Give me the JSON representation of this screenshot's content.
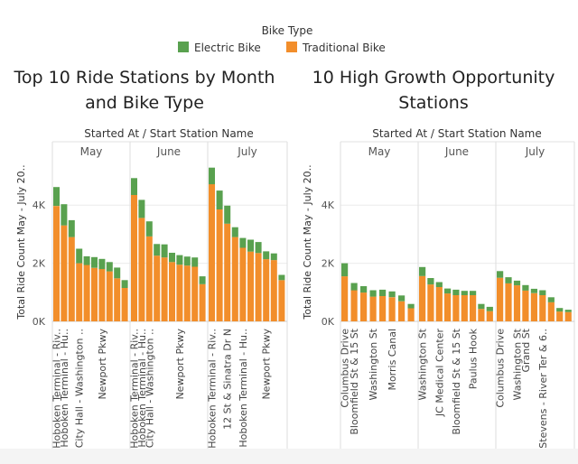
{
  "legend": {
    "title": "Bike Type",
    "items": [
      {
        "label": "Electric Bike",
        "color": "#59a14f"
      },
      {
        "label": "Traditional Bike",
        "color": "#f28e2b"
      }
    ]
  },
  "chart_data": [
    {
      "type": "bar",
      "stacked": true,
      "title": "Top 10 Ride Stations by Month and Bike Type",
      "header": "Started At / Start Station Name",
      "ylabel": "Total Ride Count May - July 20..",
      "yticks": [
        "0K",
        "2K",
        "4K"
      ],
      "ylim": [
        0,
        5600
      ],
      "panels": [
        {
          "name": "May",
          "categories": [
            "Hoboken Terminal - Riv..",
            "Hoboken Terminal - Hu..",
            "",
            "City Hall - Washington ..",
            "",
            "",
            "Newport Pkwy",
            "",
            "",
            ""
          ],
          "traditional": [
            3970,
            3300,
            2900,
            2000,
            1940,
            1840,
            1800,
            1720,
            1480,
            1150
          ],
          "electric": [
            650,
            730,
            580,
            500,
            300,
            370,
            350,
            320,
            370,
            270
          ]
        },
        {
          "name": "June",
          "categories": [
            "Hoboken Terminal - Riv..",
            "Hoboken Terminal - Hu..",
            "City Hall - Washington ..",
            "",
            "",
            "",
            "Newport Pkwy",
            "",
            "",
            ""
          ],
          "traditional": [
            4350,
            3560,
            2920,
            2260,
            2200,
            2040,
            1950,
            1920,
            1880,
            1280
          ],
          "electric": [
            580,
            620,
            520,
            400,
            450,
            320,
            330,
            310,
            320,
            270
          ]
        },
        {
          "name": "July",
          "categories": [
            "Hoboken Terminal - Riv..",
            "",
            "12 St & Sinatra Dr N",
            "",
            "Hoboken Terminal - Hu..",
            "",
            "",
            "Newport Pkwy",
            "",
            ""
          ],
          "traditional": [
            4720,
            3850,
            3360,
            2900,
            2530,
            2400,
            2350,
            2140,
            2110,
            1420
          ],
          "electric": [
            570,
            650,
            620,
            340,
            340,
            410,
            380,
            270,
            230,
            180
          ]
        }
      ]
    },
    {
      "type": "bar",
      "stacked": true,
      "title": "10 High Growth Opportunity Stations",
      "header": "Started At / Start Station Name",
      "ylabel": "Total Ride Count May - July 20..",
      "yticks": [
        "0K",
        "2K",
        "4K"
      ],
      "ylim": [
        0,
        5600
      ],
      "panels": [
        {
          "name": "May",
          "categories": [
            "Columbus Drive",
            "Bloomfield St & 15 St",
            "",
            "Washington St",
            "",
            "Morris Canal",
            "",
            ""
          ],
          "traditional": [
            1550,
            1070,
            990,
            850,
            870,
            830,
            690,
            450
          ],
          "electric": [
            450,
            250,
            220,
            220,
            220,
            200,
            200,
            150
          ]
        },
        {
          "name": "June",
          "categories": [
            "Washington St",
            "",
            "JC Medical Center",
            "",
            "Bloomfield St & 15 St",
            "",
            "Paulus Hook",
            "",
            ""
          ],
          "traditional": [
            1560,
            1270,
            1180,
            960,
            900,
            900,
            900,
            430,
            350
          ],
          "electric": [
            310,
            220,
            170,
            170,
            190,
            150,
            150,
            170,
            150
          ]
        },
        {
          "name": "July",
          "categories": [
            "Columbus Drive",
            "",
            "Washington St",
            "Grand St",
            "",
            "Stevens - River Ter & 6..",
            "",
            "",
            ""
          ],
          "traditional": [
            1500,
            1310,
            1240,
            1060,
            970,
            900,
            660,
            340,
            320
          ],
          "electric": [
            230,
            210,
            160,
            190,
            150,
            170,
            170,
            120,
            80
          ]
        }
      ]
    }
  ]
}
